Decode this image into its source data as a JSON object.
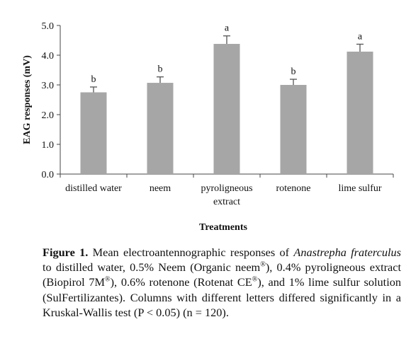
{
  "chart_data": {
    "type": "bar",
    "categories": [
      [
        "distilled water"
      ],
      [
        "neem"
      ],
      [
        "pyroligneous",
        "extract"
      ],
      [
        "rotenone"
      ],
      [
        "lime sulfur"
      ]
    ],
    "values": [
      2.75,
      3.07,
      4.38,
      3.0,
      4.12
    ],
    "errors": [
      0.18,
      0.2,
      0.27,
      0.19,
      0.25
    ],
    "significance_letters": [
      "b",
      "b",
      "a",
      "b",
      "a"
    ],
    "xlabel": "Treatments",
    "ylabel": "EAG responses (mV)",
    "ylim": [
      0,
      5
    ],
    "yticks": [
      "0.0",
      "1.0",
      "2.0",
      "3.0",
      "4.0",
      "5.0"
    ],
    "bar_color": "#a6a6a6",
    "grid": false,
    "legend": "none"
  },
  "caption": {
    "label": "Figure 1.",
    "t1": " Mean electroantennographic responses of ",
    "species": "Anastrepha fraterculus",
    "t2": " to distilled water, 0.5% Neem (Organic neem",
    "reg1": "®",
    "t3": "), 0.4% pyroligneous extract (Biopirol 7M",
    "reg2": "®",
    "t4": "), 0.6% rotenone (Rotenat CE",
    "reg3": "®",
    "t5": "), and 1% lime sulfur solution (SulFertilizantes). Columns with different letters differed significantly in a Kruskal-Wallis test (P < 0.05) (n = 120)."
  }
}
